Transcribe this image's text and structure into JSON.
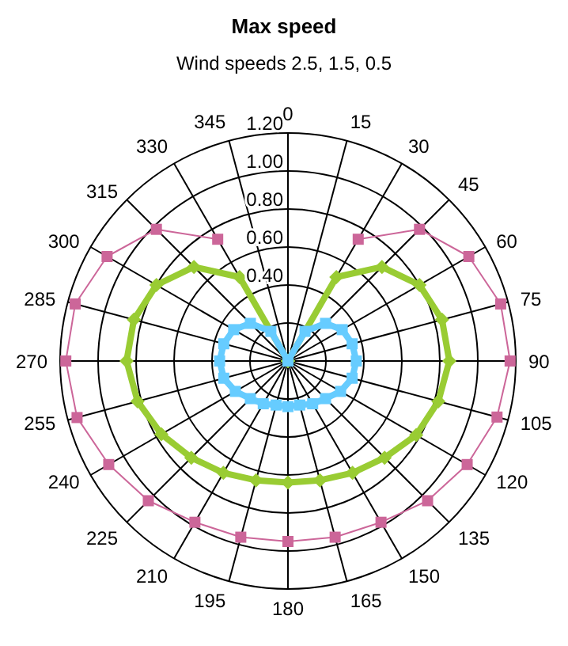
{
  "chart_data": {
    "type": "radar",
    "title": "Max speed",
    "subtitle": "Wind speeds 2.5, 1.5, 0.5",
    "categories": [
      "0",
      "15",
      "30",
      "45",
      "60",
      "75",
      "90",
      "105",
      "120",
      "135",
      "150",
      "165",
      "180",
      "195",
      "210",
      "225",
      "240",
      "255",
      "270",
      "285",
      "300",
      "315",
      "330",
      "345"
    ],
    "series": [
      {
        "color": "#cc6699",
        "marker": "square",
        "values": [
          null,
          null,
          0.74,
          0.98,
          1.1,
          1.16,
          1.17,
          1.14,
          1.09,
          1.04,
          0.98,
          0.96,
          0.95,
          0.96,
          0.98,
          1.04,
          1.09,
          1.15,
          1.17,
          1.16,
          1.1,
          0.98,
          0.74,
          null
        ]
      },
      {
        "color": "#99cc33",
        "marker": "diamond",
        "values": [
          0,
          0,
          0.51,
          0.7,
          0.8,
          0.84,
          0.85,
          0.82,
          0.78,
          0.72,
          0.68,
          0.65,
          0.64,
          0.65,
          0.68,
          0.72,
          0.77,
          0.82,
          0.85,
          0.84,
          0.8,
          0.7,
          0.51,
          0
        ]
      },
      {
        "color": "#66ccff",
        "marker": "square",
        "values": [
          0,
          0,
          0.18,
          0.28,
          0.33,
          0.35,
          0.36,
          0.35,
          0.32,
          0.28,
          0.26,
          0.24,
          0.24,
          0.24,
          0.26,
          0.28,
          0.32,
          0.35,
          0.36,
          0.35,
          0.33,
          0.28,
          0.18,
          0
        ]
      }
    ],
    "ylim": [
      0,
      1.2
    ],
    "yticks": [
      {
        "value": 0.4,
        "label": "0.40"
      },
      {
        "value": 0.6,
        "label": "0.60"
      },
      {
        "value": 0.8,
        "label": "0.80"
      },
      {
        "value": 1.0,
        "label": "1.00"
      },
      {
        "value": 1.2,
        "label": "1.20"
      }
    ],
    "grid": true,
    "legend": false
  }
}
